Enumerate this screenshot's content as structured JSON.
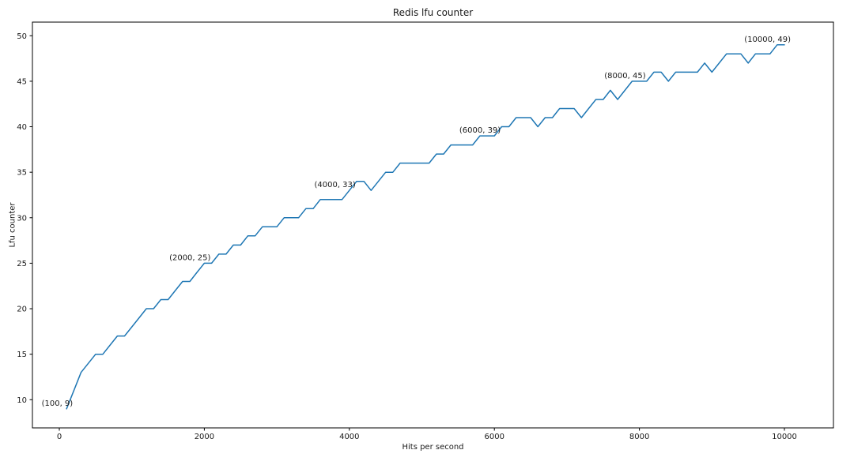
{
  "chart_data": {
    "type": "line",
    "title": "Redis lfu counter",
    "xlabel": "Hits per second",
    "ylabel": "Lfu counter",
    "grid": false,
    "x_ticks": [
      0,
      2000,
      4000,
      6000,
      8000,
      10000
    ],
    "y_ticks": [
      10,
      15,
      20,
      25,
      30,
      35,
      40,
      45,
      50
    ],
    "xlim": [
      -371,
      10676
    ],
    "ylim": [
      6.9,
      51.5
    ],
    "colors": {
      "line": "#1f77b4",
      "axis": "#000000",
      "text": "#1a1a1a"
    },
    "x": [
      100,
      200,
      300,
      400,
      500,
      600,
      700,
      800,
      900,
      1000,
      1100,
      1200,
      1300,
      1400,
      1500,
      1600,
      1700,
      1800,
      1900,
      2000,
      2100,
      2200,
      2300,
      2400,
      2500,
      2600,
      2700,
      2800,
      2900,
      3000,
      3100,
      3200,
      3300,
      3400,
      3500,
      3600,
      3700,
      3800,
      3900,
      4000,
      4100,
      4200,
      4300,
      4400,
      4500,
      4600,
      4700,
      4800,
      4900,
      5000,
      5100,
      5200,
      5300,
      5400,
      5500,
      5600,
      5700,
      5800,
      5900,
      6000,
      6100,
      6200,
      6300,
      6400,
      6500,
      6600,
      6700,
      6800,
      6900,
      7000,
      7100,
      7200,
      7300,
      7400,
      7500,
      7600,
      7700,
      7800,
      7900,
      8000,
      8100,
      8200,
      8300,
      8400,
      8500,
      8600,
      8700,
      8800,
      8900,
      9000,
      9100,
      9200,
      9300,
      9400,
      9500,
      9600,
      9700,
      9800,
      9900,
      10000
    ],
    "y": [
      9,
      11,
      13,
      14,
      15,
      15,
      16,
      17,
      17,
      18,
      19,
      20,
      20,
      21,
      21,
      22,
      23,
      23,
      24,
      25,
      25,
      26,
      26,
      27,
      27,
      28,
      28,
      29,
      29,
      29,
      30,
      30,
      30,
      31,
      31,
      32,
      32,
      32,
      32,
      33,
      34,
      34,
      33,
      34,
      35,
      35,
      36,
      36,
      36,
      36,
      36,
      37,
      37,
      38,
      38,
      38,
      38,
      39,
      39,
      39,
      40,
      40,
      41,
      41,
      41,
      40,
      41,
      41,
      42,
      42,
      42,
      41,
      42,
      43,
      43,
      44,
      43,
      44,
      45,
      45,
      45,
      46,
      46,
      45,
      46,
      46,
      46,
      46,
      47,
      46,
      47,
      48,
      48,
      48,
      47,
      48,
      48,
      48,
      49,
      49
    ],
    "annotations": [
      {
        "x": 100,
        "y": 9,
        "label": "(100, 9)"
      },
      {
        "x": 2000,
        "y": 25,
        "label": "(2000, 25)"
      },
      {
        "x": 4000,
        "y": 33,
        "label": "(4000, 33)"
      },
      {
        "x": 6000,
        "y": 39,
        "label": "(6000, 39)"
      },
      {
        "x": 8000,
        "y": 45,
        "label": "(8000, 45)"
      },
      {
        "x": 10000,
        "y": 49,
        "label": "(10000, 49)"
      }
    ]
  }
}
